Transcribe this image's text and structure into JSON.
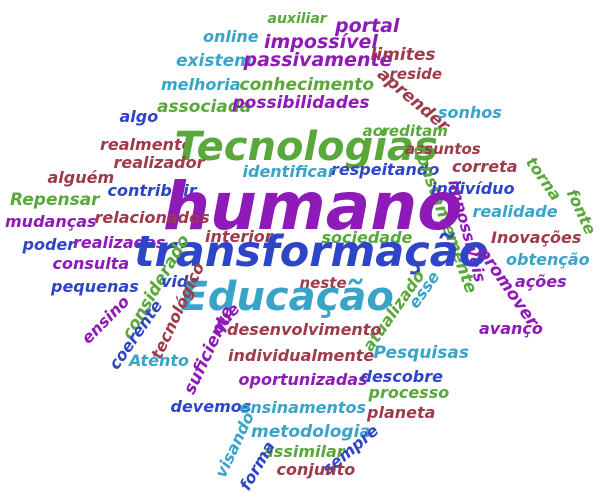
{
  "colors": {
    "purple": "#8e1ab8",
    "blue": "#2f45c8",
    "green": "#58a83a",
    "teal": "#3aa4c8",
    "maroon": "#9e3a4a"
  },
  "words": [
    {
      "text": "auxiliar",
      "color": "green"
    },
    {
      "text": "portal",
      "color": "purple"
    },
    {
      "text": "online",
      "color": "teal"
    },
    {
      "text": "impossível",
      "color": "purple"
    },
    {
      "text": "existem",
      "color": "teal"
    },
    {
      "text": "passivamente",
      "color": "purple"
    },
    {
      "text": "limites",
      "color": "maroon"
    },
    {
      "text": "reside",
      "color": "maroon"
    },
    {
      "text": "melhoria",
      "color": "teal"
    },
    {
      "text": "conhecimento",
      "color": "green"
    },
    {
      "text": "aprender",
      "color": "maroon"
    },
    {
      "text": "algo",
      "color": "blue"
    },
    {
      "text": "associada",
      "color": "green"
    },
    {
      "text": "possibilidades",
      "color": "purple"
    },
    {
      "text": "sonhos",
      "color": "teal"
    },
    {
      "text": "realmente",
      "color": "maroon"
    },
    {
      "text": "Tecnologias",
      "color": "green"
    },
    {
      "text": "acreditam",
      "color": "green"
    },
    {
      "text": "assuntos",
      "color": "maroon"
    },
    {
      "text": "realizador",
      "color": "maroon"
    },
    {
      "text": "respeitando",
      "color": "blue"
    },
    {
      "text": "correta",
      "color": "maroon"
    },
    {
      "text": "torna",
      "color": "green"
    },
    {
      "text": "alguém",
      "color": "maroon"
    },
    {
      "text": "identificar",
      "color": "teal"
    },
    {
      "text": "constantemente",
      "color": "green"
    },
    {
      "text": "indivíduo",
      "color": "blue"
    },
    {
      "text": "Repensar",
      "color": "green"
    },
    {
      "text": "contribuir",
      "color": "blue"
    },
    {
      "text": "humano",
      "color": "purple"
    },
    {
      "text": "fonte",
      "color": "green"
    },
    {
      "text": "mudanças",
      "color": "purple"
    },
    {
      "text": "relacionados",
      "color": "maroon"
    },
    {
      "text": "realidade",
      "color": "teal"
    },
    {
      "text": "impossíveis",
      "color": "purple"
    },
    {
      "text": "poder",
      "color": "blue"
    },
    {
      "text": "realizadas",
      "color": "purple"
    },
    {
      "text": "interior",
      "color": "maroon"
    },
    {
      "text": "sociedade",
      "color": "green"
    },
    {
      "text": "Inovações",
      "color": "maroon"
    },
    {
      "text": "transformação",
      "color": "blue"
    },
    {
      "text": "consulta",
      "color": "purple"
    },
    {
      "text": "obtenção",
      "color": "teal"
    },
    {
      "text": "considerado",
      "color": "green"
    },
    {
      "text": "neste",
      "color": "maroon"
    },
    {
      "text": "pequenas",
      "color": "blue"
    },
    {
      "text": "vida",
      "color": "blue"
    },
    {
      "text": "esse",
      "color": "teal"
    },
    {
      "text": "promover",
      "color": "purple"
    },
    {
      "text": "ações",
      "color": "purple"
    },
    {
      "text": "Educação",
      "color": "teal"
    },
    {
      "text": "atualizado",
      "color": "green"
    },
    {
      "text": "ensino",
      "color": "purple"
    },
    {
      "text": "coerente",
      "color": "blue"
    },
    {
      "text": "tecnológico",
      "color": "maroon"
    },
    {
      "text": "que",
      "color": "purple"
    },
    {
      "text": "desenvolvimento",
      "color": "maroon"
    },
    {
      "text": "avanço",
      "color": "purple"
    },
    {
      "text": "suficiente",
      "color": "purple"
    },
    {
      "text": "Atento",
      "color": "teal"
    },
    {
      "text": "individualmente",
      "color": "maroon"
    },
    {
      "text": "Pesquisas",
      "color": "teal"
    },
    {
      "text": "oportunizadas",
      "color": "purple"
    },
    {
      "text": "descobre",
      "color": "blue"
    },
    {
      "text": "devemos",
      "color": "blue"
    },
    {
      "text": "processo",
      "color": "green"
    },
    {
      "text": "ensinamentos",
      "color": "teal"
    },
    {
      "text": "planeta",
      "color": "maroon"
    },
    {
      "text": "metodologia",
      "color": "teal"
    },
    {
      "text": "visando",
      "color": "teal"
    },
    {
      "text": "sempre",
      "color": "blue"
    },
    {
      "text": "assimilar",
      "color": "green"
    },
    {
      "text": "forma",
      "color": "blue"
    },
    {
      "text": "conjunto",
      "color": "maroon"
    }
  ]
}
